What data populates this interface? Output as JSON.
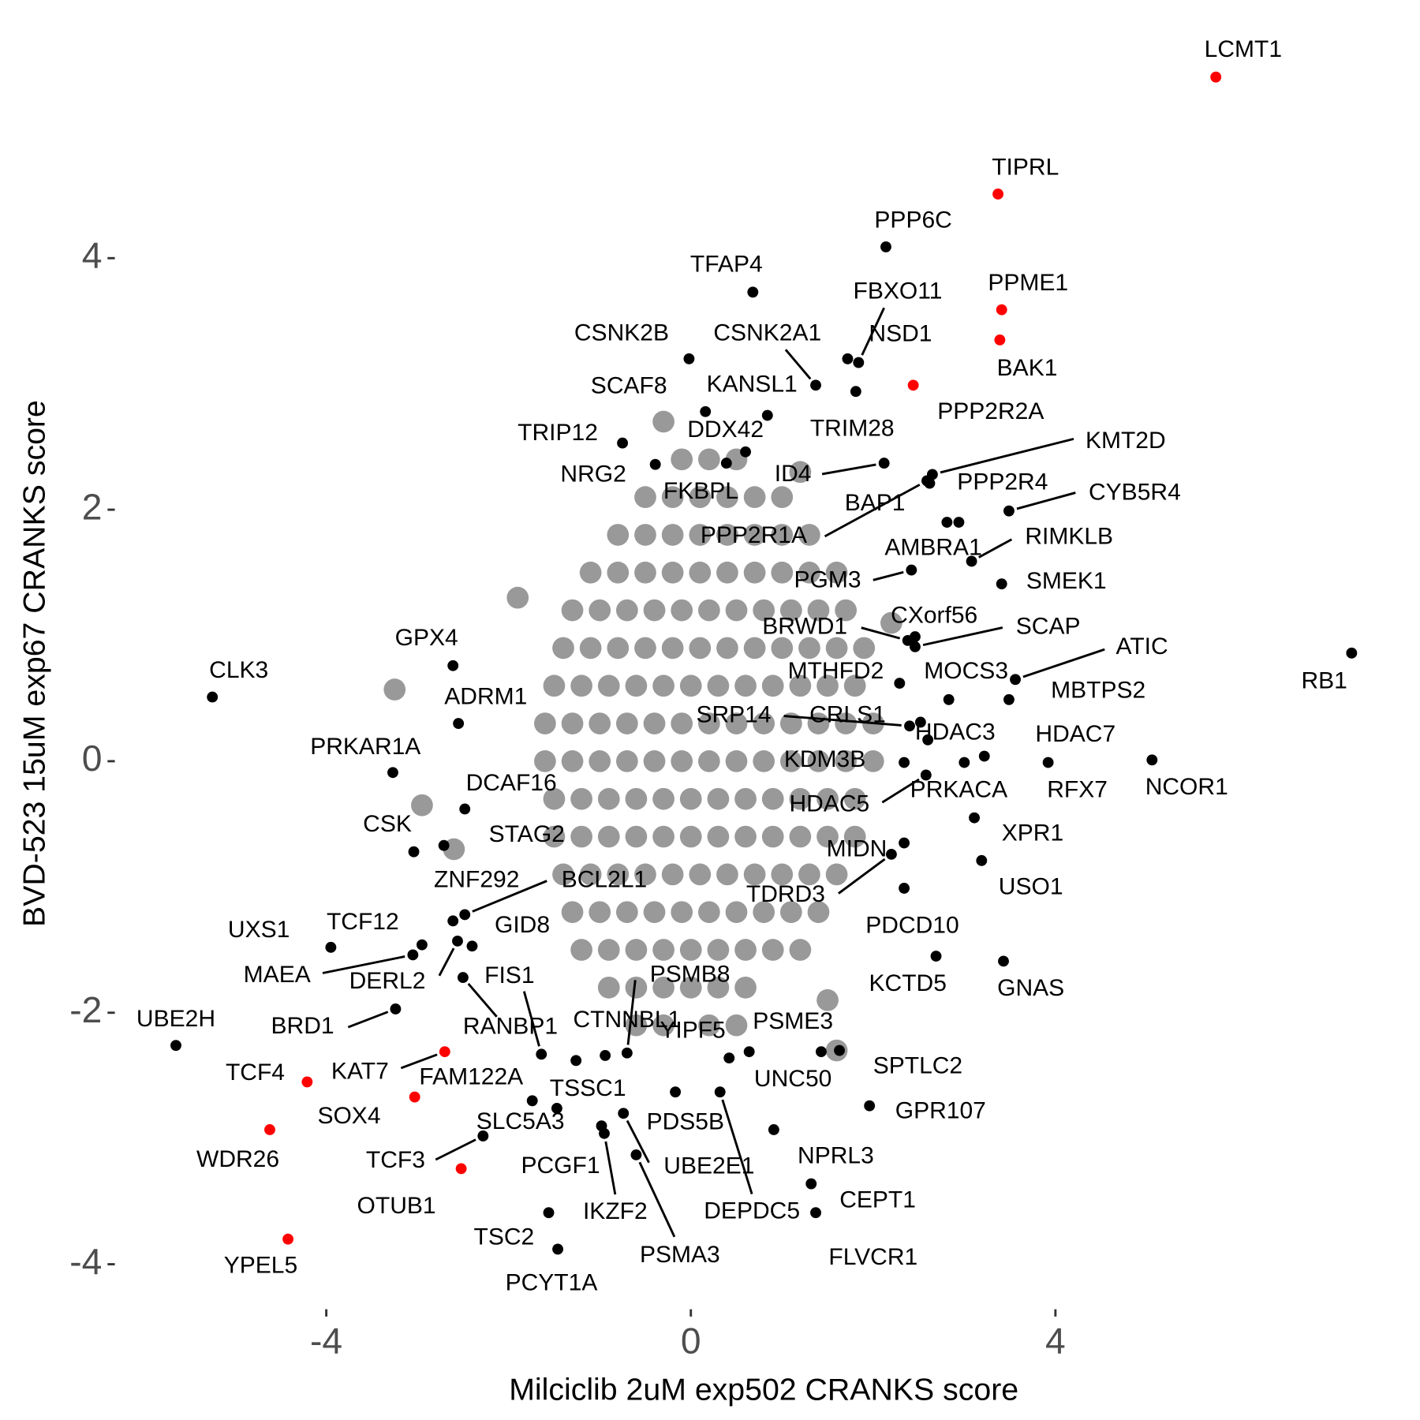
{
  "chart_data": {
    "type": "scatter",
    "xlabel": "Milciclib 2uM exp502 CRANKS score",
    "ylabel": "BVD-523 15uM exp67 CRANKS score",
    "xlim": [
      -6.3,
      7.8
    ],
    "ylim": [
      -4.3,
      5.85
    ],
    "xticks": [
      -4,
      0,
      4
    ],
    "yticks": [
      -4,
      -2,
      0,
      2,
      4
    ],
    "grid": false,
    "series": [
      {
        "color": "#999999",
        "x": [
          -0.1,
          0.2,
          0.5,
          -0.5,
          -0.2,
          0.1,
          0.4,
          0.7,
          1.0,
          -0.8,
          -0.5,
          -0.2,
          0.1,
          0.4,
          0.7,
          1.0,
          1.3,
          -1.1,
          -0.8,
          -0.5,
          -0.2,
          0.1,
          0.4,
          0.7,
          1.0,
          1.3,
          1.6,
          -1.3,
          -1.0,
          -0.7,
          -0.4,
          -0.1,
          0.2,
          0.5,
          0.8,
          1.1,
          1.4,
          1.7,
          -1.4,
          -1.1,
          -0.8,
          -0.5,
          -0.2,
          0.1,
          0.4,
          0.7,
          1.0,
          1.3,
          1.6,
          1.9,
          -1.5,
          -1.2,
          -0.9,
          -0.6,
          -0.3,
          0,
          0.3,
          0.6,
          0.9,
          1.2,
          1.5,
          1.8,
          -1.6,
          -1.3,
          -1.0,
          -0.7,
          -0.4,
          -0.1,
          0.2,
          0.5,
          0.8,
          1.1,
          1.4,
          1.7,
          2.0,
          -1.6,
          -1.3,
          -1.0,
          -0.7,
          -0.4,
          -0.1,
          0.2,
          0.5,
          0.8,
          1.1,
          1.4,
          1.7,
          2.0,
          -1.5,
          -1.2,
          -0.9,
          -0.6,
          -0.3,
          0,
          0.3,
          0.6,
          0.9,
          1.2,
          1.5,
          1.8,
          -1.5,
          -1.2,
          -0.9,
          -0.6,
          -0.3,
          0,
          0.3,
          0.6,
          0.9,
          1.2,
          1.5,
          1.8,
          -1.4,
          -1.1,
          -0.8,
          -0.5,
          -0.2,
          0.1,
          0.4,
          0.7,
          1.0,
          1.3,
          1.6,
          -1.3,
          -1.0,
          -0.7,
          -0.4,
          -0.1,
          0.2,
          0.5,
          0.8,
          1.1,
          1.4,
          -1.2,
          -0.9,
          -0.6,
          -0.3,
          0,
          0.3,
          0.6,
          0.9,
          1.2,
          -0.9,
          -0.6,
          -0.3,
          0,
          0.3,
          0.6,
          -0.6,
          -0.3,
          0.2,
          0.5,
          -3.25,
          -2.95,
          -2.6,
          1.6,
          1.5,
          -1.9,
          2.2,
          -0.3,
          1.2
        ],
        "y": [
          2.4,
          2.4,
          2.4,
          2.1,
          2.1,
          2.1,
          2.1,
          2.1,
          2.1,
          1.8,
          1.8,
          1.8,
          1.8,
          1.8,
          1.8,
          1.8,
          1.8,
          1.5,
          1.5,
          1.5,
          1.5,
          1.5,
          1.5,
          1.5,
          1.5,
          1.5,
          1.5,
          1.2,
          1.2,
          1.2,
          1.2,
          1.2,
          1.2,
          1.2,
          1.2,
          1.2,
          1.2,
          1.2,
          0.9,
          0.9,
          0.9,
          0.9,
          0.9,
          0.9,
          0.9,
          0.9,
          0.9,
          0.9,
          0.9,
          0.9,
          0.6,
          0.6,
          0.6,
          0.6,
          0.6,
          0.6,
          0.6,
          0.6,
          0.6,
          0.6,
          0.6,
          0.6,
          0.3,
          0.3,
          0.3,
          0.3,
          0.3,
          0.3,
          0.3,
          0.3,
          0.3,
          0.3,
          0.3,
          0.3,
          0.3,
          0,
          0,
          0,
          0,
          0,
          0,
          0,
          0,
          0,
          0,
          0,
          0,
          0,
          -0.3,
          -0.3,
          -0.3,
          -0.3,
          -0.3,
          -0.3,
          -0.3,
          -0.3,
          -0.3,
          -0.3,
          -0.3,
          -0.3,
          -0.6,
          -0.6,
          -0.6,
          -0.6,
          -0.6,
          -0.6,
          -0.6,
          -0.6,
          -0.6,
          -0.6,
          -0.6,
          -0.6,
          -0.9,
          -0.9,
          -0.9,
          -0.9,
          -0.9,
          -0.9,
          -0.9,
          -0.9,
          -0.9,
          -0.9,
          -0.9,
          -1.2,
          -1.2,
          -1.2,
          -1.2,
          -1.2,
          -1.2,
          -1.2,
          -1.2,
          -1.2,
          -1.2,
          -1.5,
          -1.5,
          -1.5,
          -1.5,
          -1.5,
          -1.5,
          -1.5,
          -1.5,
          -1.5,
          -1.8,
          -1.8,
          -1.8,
          -1.8,
          -1.8,
          -1.8,
          -2.1,
          -2.1,
          -2.1,
          -2.1,
          0.57,
          -0.35,
          -0.7,
          -2.3,
          -1.9,
          1.3,
          1.1,
          2.7,
          2.3
        ]
      },
      {
        "color": "#000000",
        "labels": [
          "PPP6C",
          "TFAP4",
          "FBXO11",
          "NSD1",
          "CSNK2B",
          "CSNK2A1",
          "SCAF8",
          "KANSL1",
          "TRIM28",
          "TRIP12",
          "DDX42",
          "NRG2",
          "FKBPL",
          "ID4",
          "KMT2D",
          "PPP2R4",
          "BAP1",
          "PPP2R1A",
          "AMBRA1",
          "RIMKLB",
          "CYB5R4",
          "PGM3",
          "SMEK1",
          "CXorf56",
          "SCAP",
          "BRWD1",
          "ATIC",
          "RB1",
          "MTHFD2",
          "MOCS3",
          "MBTPS2",
          "SRP14",
          "CRLS1",
          "HDAC3",
          "HDAC7",
          "KDM3B",
          "RFX7",
          "NCOR1",
          "PRKACA",
          "HDAC5",
          "XPR1",
          "USO1",
          "MIDN",
          "TDRD3",
          "PDCD10",
          "KCTD5",
          "GNAS",
          "PSME3",
          "SPTLC2",
          "UNC50",
          "YIPF5",
          "GPR107",
          "NPRL3",
          "CEPT1",
          "FLVCR1",
          "DEPDC5",
          "PDS5B",
          "UBE2E1",
          "PSMA3",
          "IKZF2",
          "PCGF1",
          "PSMB8",
          "CTNNBL1",
          "TSSC1",
          "FAM122A",
          "SLC5A3",
          "FIS1",
          "RANBP1",
          "TCF3",
          "TSC2",
          "PCYT1A",
          "UBE2H",
          "BRD1",
          "MAEA",
          "UXS1",
          "TCF12",
          "DERL2",
          "GID8",
          "ZNF292",
          "BCL2L1",
          "STAG2",
          "CSK",
          "DCAF16",
          "PRKAR1A",
          "ADRM1",
          "GPX4",
          "CLK3"
        ],
        "x": [
          2.14,
          0.68,
          1.84,
          1.72,
          -0.02,
          1.37,
          0.16,
          0.84,
          1.81,
          -0.75,
          0.6,
          -0.39,
          0.39,
          2.12,
          2.65,
          2.62,
          2.81,
          2.59,
          2.94,
          3.08,
          3.49,
          2.42,
          3.41,
          2.46,
          2.46,
          2.38,
          3.56,
          7.25,
          2.29,
          2.83,
          3.49,
          2.4,
          2.52,
          2.6,
          3.22,
          2.34,
          3.92,
          5.06,
          3.0,
          2.58,
          3.11,
          3.19,
          2.34,
          2.2,
          2.34,
          2.69,
          3.43,
          1.43,
          1.63,
          0.64,
          0.42,
          1.96,
          0.91,
          1.32,
          1.37,
          0.32,
          -0.17,
          -0.74,
          -0.6,
          -0.95,
          -0.98,
          -0.7,
          -0.94,
          -1.26,
          -1.47,
          -1.74,
          -1.64,
          -2.5,
          -2.28,
          -1.56,
          -1.46,
          -5.65,
          -3.24,
          -3.05,
          -3.95,
          -2.95,
          -2.56,
          -2.4,
          -2.61,
          -2.48,
          -2.71,
          -3.04,
          -2.48,
          -3.27,
          -2.55,
          -2.61,
          -5.25
        ],
        "y": [
          4.09,
          3.73,
          3.17,
          3.2,
          3.2,
          2.99,
          2.78,
          2.75,
          2.94,
          2.53,
          2.46,
          2.36,
          2.37,
          2.37,
          2.28,
          2.21,
          1.9,
          2.23,
          1.9,
          1.59,
          1.99,
          1.52,
          1.41,
          0.99,
          0.91,
          0.96,
          0.65,
          0.86,
          0.62,
          0.49,
          0.49,
          0.28,
          0.31,
          0.17,
          0.04,
          -0.01,
          -0.01,
          0.01,
          -0.01,
          -0.11,
          -0.45,
          -0.79,
          -0.65,
          -0.74,
          -1.01,
          -1.55,
          -1.59,
          -2.31,
          -2.3,
          -2.31,
          -2.36,
          -2.74,
          -2.93,
          -3.36,
          -3.59,
          -2.63,
          -2.63,
          -2.8,
          -3.13,
          -2.96,
          -2.9,
          -2.32,
          -2.34,
          -2.38,
          -2.76,
          -2.7,
          -2.33,
          -1.72,
          -2.98,
          -3.59,
          -3.88,
          -2.26,
          -1.97,
          -1.54,
          -1.48,
          -1.46,
          -1.43,
          -1.47,
          -1.27,
          -1.22,
          -0.67,
          -0.72,
          -0.38,
          -0.09,
          0.3,
          0.76,
          0.51
        ]
      },
      {
        "color": "#ff0000",
        "labels": [
          "LCMT1",
          "TIPRL",
          "PPME1",
          "BAK1",
          "PPP2R2A",
          "KAT7",
          "TCF4",
          "SOX4",
          "WDR26",
          "OTUB1",
          "YPEL5"
        ],
        "x": [
          5.76,
          3.37,
          3.41,
          3.39,
          2.44,
          -2.7,
          -4.21,
          -3.03,
          -4.62,
          -2.52,
          -4.42
        ],
        "y": [
          5.44,
          4.51,
          3.59,
          3.35,
          2.99,
          -2.31,
          -2.55,
          -2.67,
          -2.93,
          -3.24,
          -3.8
        ]
      }
    ]
  }
}
